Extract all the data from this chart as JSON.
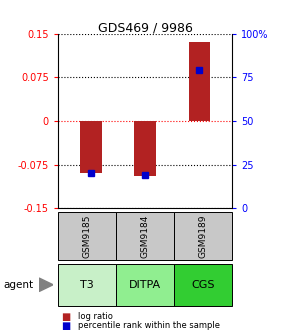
{
  "title": "GDS469 / 9986",
  "categories": [
    "GSM9185",
    "GSM9184",
    "GSM9189"
  ],
  "agents": [
    "T3",
    "DITPA",
    "CGS"
  ],
  "log_ratios": [
    -0.09,
    -0.095,
    0.135
  ],
  "percentile_ranks": [
    20,
    19,
    79
  ],
  "ylim_left": [
    -0.15,
    0.15
  ],
  "ylim_right": [
    0,
    100
  ],
  "yticks_left": [
    -0.15,
    -0.075,
    0,
    0.075,
    0.15
  ],
  "yticks_right": [
    0,
    25,
    50,
    75,
    100
  ],
  "bar_color": "#b22222",
  "marker_color": "#0000cc",
  "agent_colors": [
    "#c8f0c8",
    "#90ee90",
    "#32cd32"
  ],
  "sample_bg_color": "#c8c8c8",
  "bar_width": 0.4,
  "legend_labels": [
    "log ratio",
    "percentile rank within the sample"
  ]
}
